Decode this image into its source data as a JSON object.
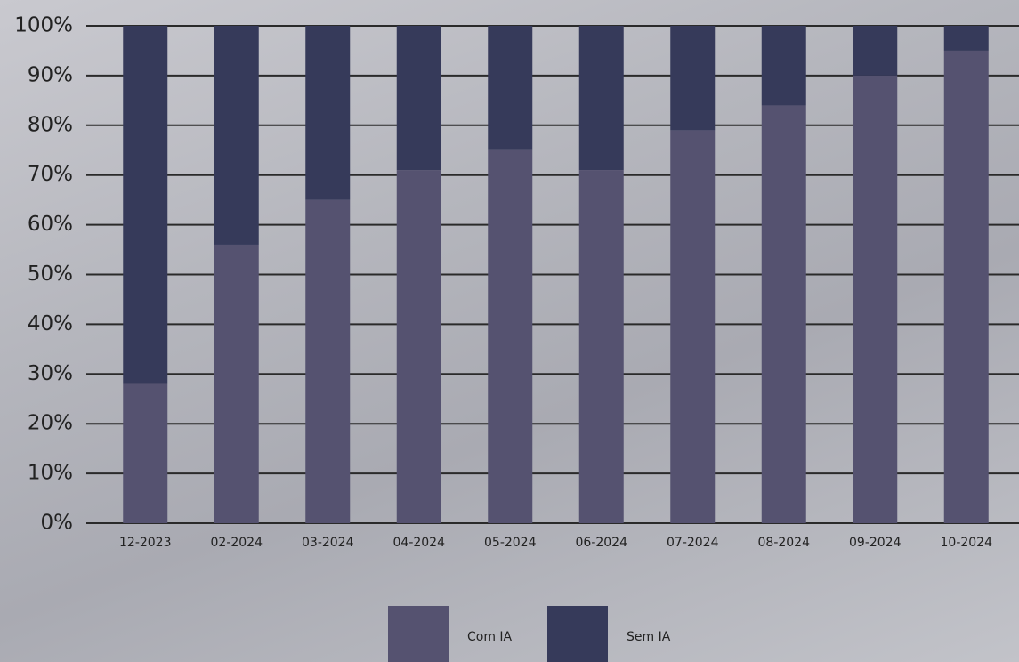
{
  "chart_data": {
    "type": "stacked_bar",
    "categories": [
      "12-2023",
      "02-2024",
      "03-2024",
      "04-2024",
      "05-2024",
      "06-2024",
      "07-2024",
      "08-2024",
      "09-2024",
      "10-2024"
    ],
    "series": [
      {
        "name": "Com IA",
        "color": "#555270",
        "values": [
          28,
          56,
          65,
          71,
          75,
          71,
          79,
          84,
          90,
          95
        ]
      },
      {
        "name": "Sem IA",
        "color": "#363a5a",
        "values": [
          72,
          44,
          35,
          29,
          25,
          29,
          21,
          16,
          10,
          5
        ]
      }
    ],
    "ylim": [
      0,
      100
    ],
    "yticks": [
      {
        "value": 0,
        "label": "0%"
      },
      {
        "value": 10,
        "label": "10%"
      },
      {
        "value": 20,
        "label": "20%"
      },
      {
        "value": 30,
        "label": "30%"
      },
      {
        "value": 40,
        "label": "40%"
      },
      {
        "value": 50,
        "label": "50%"
      },
      {
        "value": 60,
        "label": "60%"
      },
      {
        "value": 70,
        "label": "70%"
      },
      {
        "value": 80,
        "label": "80%"
      },
      {
        "value": 90,
        "label": "90%"
      },
      {
        "value": 100,
        "label": "100%"
      }
    ],
    "grid": true,
    "legend": "bottom"
  }
}
